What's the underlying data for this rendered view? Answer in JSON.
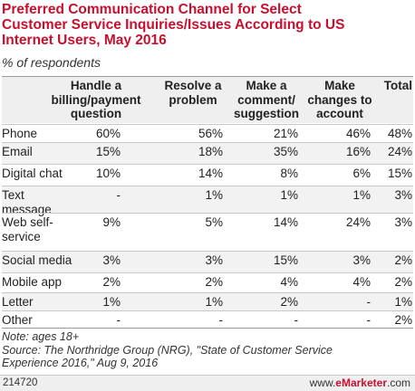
{
  "header": {
    "title_lines": [
      "Preferred Communication Channel for Select",
      "Customer Service Inquiries/Issues According to US",
      "Internet Users, May 2016"
    ],
    "subtitle": "% of respondents"
  },
  "table": {
    "columns": [
      [
        "Handle a",
        "billing/payment",
        "question"
      ],
      [
        "Resolve a",
        "problem"
      ],
      [
        "Make a",
        "comment/",
        "suggestion"
      ],
      [
        "Make",
        "changes to",
        "account"
      ],
      [
        "Total"
      ]
    ],
    "rows": [
      {
        "label_lines": [
          "Phone"
        ],
        "values": [
          "60%",
          "56%",
          "21%",
          "46%",
          "48%"
        ]
      },
      {
        "label_lines": [
          "Email"
        ],
        "values": [
          "15%",
          "18%",
          "35%",
          "16%",
          "24%"
        ]
      },
      {
        "label_lines": [
          "Digital chat"
        ],
        "values": [
          "10%",
          "14%",
          "8%",
          "6%",
          "15%"
        ]
      },
      {
        "label_lines": [
          "Text",
          "message"
        ],
        "values": [
          "-",
          "1%",
          "1%",
          "1%",
          "3%"
        ]
      },
      {
        "label_lines": [
          "Web self-",
          "service"
        ],
        "values": [
          "9%",
          "5%",
          "14%",
          "24%",
          "3%"
        ]
      },
      {
        "label_lines": [
          "Social media"
        ],
        "values": [
          "3%",
          "3%",
          "15%",
          "3%",
          "2%"
        ]
      },
      {
        "label_lines": [
          "Mobile app"
        ],
        "values": [
          "2%",
          "2%",
          "4%",
          "4%",
          "2%"
        ]
      },
      {
        "label_lines": [
          "Letter"
        ],
        "values": [
          "1%",
          "1%",
          "2%",
          "-",
          "1%"
        ]
      },
      {
        "label_lines": [
          "Other"
        ],
        "values": [
          "-",
          "-",
          "-",
          "-",
          "2%"
        ]
      }
    ]
  },
  "chart_data": {
    "type": "table",
    "title": "Preferred Communication Channel for Select Customer Service Inquiries/Issues According to US Internet Users, May 2016",
    "subtitle": "% of respondents",
    "categories": [
      "Phone",
      "Email",
      "Digital chat",
      "Text message",
      "Web self-service",
      "Social media",
      "Mobile app",
      "Letter",
      "Other"
    ],
    "series": [
      {
        "name": "Handle a billing/payment question",
        "values": [
          60,
          15,
          10,
          null,
          9,
          3,
          2,
          1,
          null
        ]
      },
      {
        "name": "Resolve a problem",
        "values": [
          56,
          18,
          14,
          1,
          5,
          3,
          2,
          1,
          null
        ]
      },
      {
        "name": "Make a comment/suggestion",
        "values": [
          21,
          35,
          8,
          1,
          14,
          15,
          4,
          2,
          null
        ]
      },
      {
        "name": "Make changes to account",
        "values": [
          46,
          16,
          6,
          1,
          24,
          3,
          4,
          null,
          null
        ]
      },
      {
        "name": "Total",
        "values": [
          48,
          24,
          15,
          3,
          3,
          2,
          2,
          1,
          2
        ]
      }
    ]
  },
  "notes": {
    "lines": [
      "Note: ages 18+",
      "Source: The Northridge Group (NRG), \"State of Customer Service",
      "Experience 2016,\" Aug 9, 2016"
    ]
  },
  "footer": {
    "chart_id": "214720",
    "site_prefix": "www.",
    "site_brand": "eMarketer",
    "site_suffix": ".com"
  },
  "colors": {
    "title": "#c8102e",
    "header_band": "#efefef",
    "shaded_row": "#f2f2f2",
    "rule": "#c8c8c8"
  }
}
